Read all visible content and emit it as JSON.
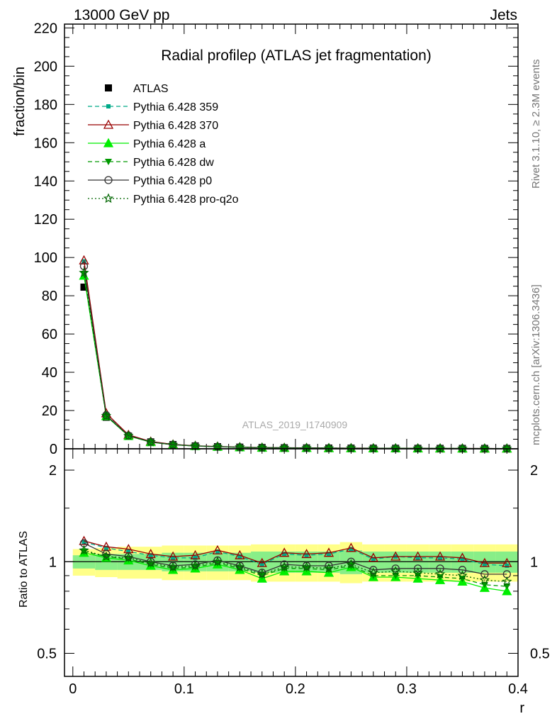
{
  "header": {
    "left": "13000 GeV pp",
    "right": "Jets"
  },
  "side_labels": {
    "rivet": "Rivet 3.1.10, ≥ 2.3M events",
    "mcplots": "mcplots.cern.ch [arXiv:1306.3436]"
  },
  "colors": {
    "ratio_band_outer": "#ffff88",
    "ratio_band_inner": "#88ee88",
    "reference_line": "#000000"
  },
  "chart_data": [
    {
      "type": "line",
      "title": "Radial profileρ (ATLAS jet fragmentation)",
      "xlabel": "",
      "ylabel": "fraction/bin",
      "xlim": [
        -0.0075,
        0.4
      ],
      "ylim": [
        0,
        222
      ],
      "grid": false,
      "legend_position": "top-left",
      "watermark": "ATLAS_2019_I1740909",
      "x_ticks": [
        "0",
        "0.1",
        "0.2",
        "0.3",
        "0.4"
      ],
      "y_ticks": [
        "0",
        "20",
        "40",
        "60",
        "80",
        "100",
        "120",
        "140",
        "160",
        "180",
        "200",
        "220"
      ],
      "x": [
        0.01,
        0.03,
        0.05,
        0.07,
        0.09,
        0.11,
        0.13,
        0.15,
        0.17,
        0.19,
        0.21,
        0.23,
        0.25,
        0.27,
        0.29,
        0.31,
        0.33,
        0.35,
        0.37,
        0.39
      ],
      "series": [
        {
          "name": "ATLAS",
          "color": "#000000",
          "marker": "square",
          "line": "none",
          "values": [
            84.5,
            16.5,
            6.6,
            3.6,
            2.2,
            1.5,
            1.1,
            0.85,
            0.65,
            0.52,
            0.44,
            0.37,
            0.32,
            0.28,
            0.25,
            0.22,
            0.2,
            0.18,
            0.17,
            0.16
          ]
        },
        {
          "name": "Pythia 6.428 359",
          "color": "#00aa88",
          "marker": "small-square",
          "line": "dashed",
          "values": [
            98.0,
            18.4,
            7.1,
            3.7,
            2.25,
            1.55,
            1.15,
            0.86,
            0.63,
            0.55,
            0.46,
            0.38,
            0.35,
            0.28,
            0.26,
            0.22,
            0.2,
            0.18,
            0.17,
            0.16
          ]
        },
        {
          "name": "Pythia 6.428 370",
          "color": "#990000",
          "marker": "open-triangle",
          "line": "solid",
          "values": [
            98.5,
            18.6,
            7.3,
            3.8,
            2.28,
            1.57,
            1.18,
            0.88,
            0.64,
            0.56,
            0.47,
            0.38,
            0.36,
            0.28,
            0.26,
            0.22,
            0.2,
            0.18,
            0.17,
            0.16
          ]
        },
        {
          "name": "Pythia 6.428 a",
          "color": "#00ee00",
          "marker": "triangle",
          "line": "solid",
          "values": [
            90.5,
            17.1,
            6.7,
            3.5,
            2.1,
            1.45,
            1.08,
            0.8,
            0.58,
            0.49,
            0.42,
            0.35,
            0.31,
            0.25,
            0.23,
            0.19,
            0.18,
            0.16,
            0.14,
            0.13
          ]
        },
        {
          "name": "Pythia 6.428 dw",
          "color": "#009900",
          "marker": "down-triangle",
          "line": "dashed",
          "values": [
            91.5,
            17.3,
            6.8,
            3.55,
            2.12,
            1.47,
            1.09,
            0.81,
            0.59,
            0.5,
            0.43,
            0.35,
            0.31,
            0.26,
            0.23,
            0.2,
            0.18,
            0.16,
            0.15,
            0.14
          ]
        },
        {
          "name": "Pythia 6.428 p0",
          "color": "#333333",
          "marker": "open-circle",
          "line": "solid",
          "values": [
            95.5,
            17.5,
            6.9,
            3.6,
            2.15,
            1.48,
            1.1,
            0.83,
            0.6,
            0.51,
            0.43,
            0.36,
            0.32,
            0.26,
            0.24,
            0.21,
            0.19,
            0.17,
            0.16,
            0.15
          ]
        },
        {
          "name": "Pythia 6.428 pro-q2o",
          "color": "#006600",
          "marker": "open-star",
          "line": "dotted",
          "values": [
            92.0,
            17.2,
            6.8,
            3.55,
            2.13,
            1.47,
            1.1,
            0.82,
            0.59,
            0.5,
            0.43,
            0.36,
            0.31,
            0.26,
            0.24,
            0.2,
            0.18,
            0.16,
            0.15,
            0.14
          ]
        }
      ]
    },
    {
      "type": "line",
      "xlabel": "r",
      "ylabel": "Ratio to ATLAS",
      "xlim": [
        -0.0075,
        0.4
      ],
      "ylim": [
        0.42,
        2.35
      ],
      "y_scale": "log",
      "x_ticks": [
        "0",
        "0.1",
        "0.2",
        "0.3",
        "0.4"
      ],
      "y_ticks": [
        "0.5",
        "1",
        "2"
      ],
      "x": [
        0.01,
        0.03,
        0.05,
        0.07,
        0.09,
        0.11,
        0.13,
        0.15,
        0.17,
        0.19,
        0.21,
        0.23,
        0.25,
        0.27,
        0.29,
        0.31,
        0.33,
        0.35,
        0.37,
        0.39
      ],
      "bands": {
        "outer_lo": [
          0.9,
          0.89,
          0.88,
          0.88,
          0.87,
          0.87,
          0.87,
          0.87,
          0.86,
          0.86,
          0.86,
          0.86,
          0.85,
          0.86,
          0.86,
          0.86,
          0.86,
          0.86,
          0.86,
          0.86
        ],
        "outer_hi": [
          1.1,
          1.11,
          1.12,
          1.12,
          1.13,
          1.13,
          1.13,
          1.13,
          1.14,
          1.14,
          1.14,
          1.14,
          1.16,
          1.14,
          1.14,
          1.14,
          1.14,
          1.14,
          1.14,
          1.14
        ],
        "inner_lo": [
          0.95,
          0.94,
          0.94,
          0.94,
          0.93,
          0.93,
          0.93,
          0.93,
          0.92,
          0.92,
          0.92,
          0.92,
          0.91,
          0.92,
          0.92,
          0.92,
          0.92,
          0.92,
          0.92,
          0.92
        ],
        "inner_hi": [
          1.05,
          1.06,
          1.06,
          1.06,
          1.07,
          1.07,
          1.07,
          1.07,
          1.08,
          1.08,
          1.08,
          1.08,
          1.09,
          1.08,
          1.08,
          1.08,
          1.08,
          1.08,
          1.08,
          1.08
        ]
      },
      "series": [
        {
          "name": "Pythia 6.428 359",
          "values": [
            1.16,
            1.11,
            1.08,
            1.05,
            1.03,
            1.03,
            1.08,
            1.04,
            0.98,
            1.06,
            1.05,
            1.06,
            1.1,
            1.02,
            1.04,
            1.03,
            1.03,
            1.02,
            0.98,
            0.97
          ]
        },
        {
          "name": "Pythia 6.428 370",
          "values": [
            1.17,
            1.12,
            1.1,
            1.06,
            1.04,
            1.05,
            1.09,
            1.05,
            0.99,
            1.07,
            1.06,
            1.07,
            1.11,
            1.03,
            1.04,
            1.04,
            1.04,
            1.03,
            0.99,
            0.99
          ]
        },
        {
          "name": "Pythia 6.428 a",
          "values": [
            1.07,
            1.03,
            1.01,
            0.97,
            0.94,
            0.95,
            0.98,
            0.94,
            0.88,
            0.93,
            0.93,
            0.92,
            0.96,
            0.89,
            0.89,
            0.88,
            0.87,
            0.86,
            0.82,
            0.8
          ]
        },
        {
          "name": "Pythia 6.428 dw",
          "values": [
            1.08,
            1.04,
            1.02,
            0.98,
            0.95,
            0.96,
            0.99,
            0.95,
            0.9,
            0.95,
            0.95,
            0.94,
            0.97,
            0.9,
            0.9,
            0.9,
            0.89,
            0.88,
            0.84,
            0.83
          ]
        },
        {
          "name": "Pythia 6.428 p0",
          "values": [
            1.15,
            1.06,
            1.04,
            1.0,
            0.97,
            0.98,
            1.01,
            0.97,
            0.92,
            0.98,
            0.97,
            0.97,
            1.0,
            0.94,
            0.95,
            0.95,
            0.95,
            0.94,
            0.91,
            0.91
          ]
        },
        {
          "name": "Pythia 6.428 pro-q2o",
          "values": [
            1.09,
            1.04,
            1.03,
            0.99,
            0.96,
            0.97,
            1.0,
            0.96,
            0.91,
            0.96,
            0.96,
            0.95,
            0.98,
            0.92,
            0.93,
            0.92,
            0.91,
            0.9,
            0.87,
            0.86
          ]
        }
      ]
    }
  ]
}
